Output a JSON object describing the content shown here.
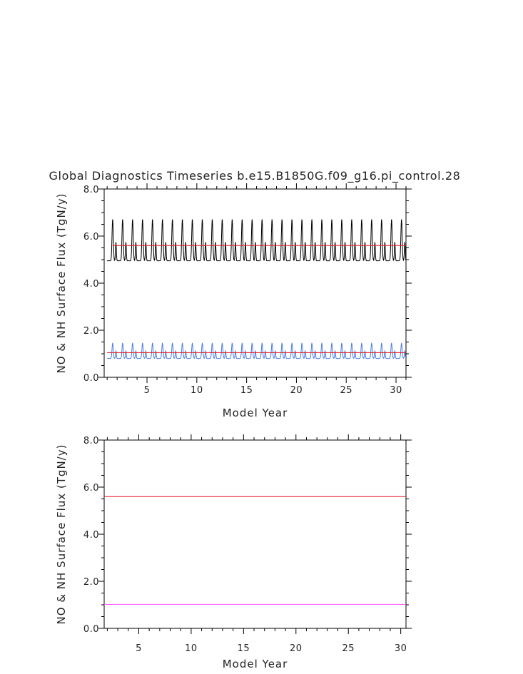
{
  "title": "Global Diagnostics Timeseries b.e15.B1850G.f09_g16.pi_control.28",
  "colors": {
    "black_series": "#000000",
    "red_series": "#e8181e",
    "blue_series": "#4a7be8",
    "magenta_series": "#ff55ff"
  },
  "chart_data": [
    {
      "type": "line",
      "xlabel": "Model Year",
      "ylabel": "NO & NH Surface Flux (TgN/y)",
      "xlim": [
        0.7,
        31.0
      ],
      "ylim": [
        0,
        8
      ],
      "xticks": [
        5,
        10,
        15,
        20,
        25,
        30
      ],
      "xtick_labels": [
        "5",
        "10",
        "15",
        "20",
        "25",
        "30"
      ],
      "yticks": [
        0,
        2,
        4,
        6,
        8
      ],
      "ytick_labels": [
        "0.0",
        "2.0",
        "4.0",
        "6.0",
        "8.0"
      ],
      "series": [
        {
          "color": "#000000",
          "kind": "seasonal",
          "x_start": 1.0,
          "x_end": 31.0,
          "min": 4.95,
          "max": 6.72,
          "secondary_peak": 5.75,
          "cycles_per_year": 1
        },
        {
          "color": "#e8181e",
          "kind": "constant",
          "x_start": 1.55,
          "x_end": 31.0,
          "value": 5.6
        },
        {
          "color": "#4a7be8",
          "kind": "seasonal",
          "x_start": 1.0,
          "x_end": 31.0,
          "min": 0.8,
          "max": 1.45,
          "secondary_peak": 1.12,
          "cycles_per_year": 1
        },
        {
          "color": "#e8181e",
          "kind": "constant",
          "x_start": 1.0,
          "x_end": 31.0,
          "value": 1.05
        }
      ]
    },
    {
      "type": "line",
      "xlabel": "Model Year",
      "ylabel": "NO & NH Surface Flux (TgN/y)",
      "xlim": [
        1.7,
        30.5
      ],
      "ylim": [
        0,
        8
      ],
      "xticks": [
        5,
        10,
        15,
        20,
        25,
        30
      ],
      "xtick_labels": [
        "5",
        "10",
        "15",
        "20",
        "25",
        "30"
      ],
      "yticks": [
        0,
        2,
        4,
        6,
        8
      ],
      "ytick_labels": [
        "0.0",
        "2.0",
        "4.0",
        "6.0",
        "8.0"
      ],
      "series": [
        {
          "color": "#e8181e",
          "kind": "constant",
          "x_start": 1.7,
          "x_end": 30.5,
          "value": 5.6
        },
        {
          "color": "#ff55ff",
          "kind": "constant",
          "x_start": 1.7,
          "x_end": 30.5,
          "value": 1.02
        }
      ]
    }
  ]
}
